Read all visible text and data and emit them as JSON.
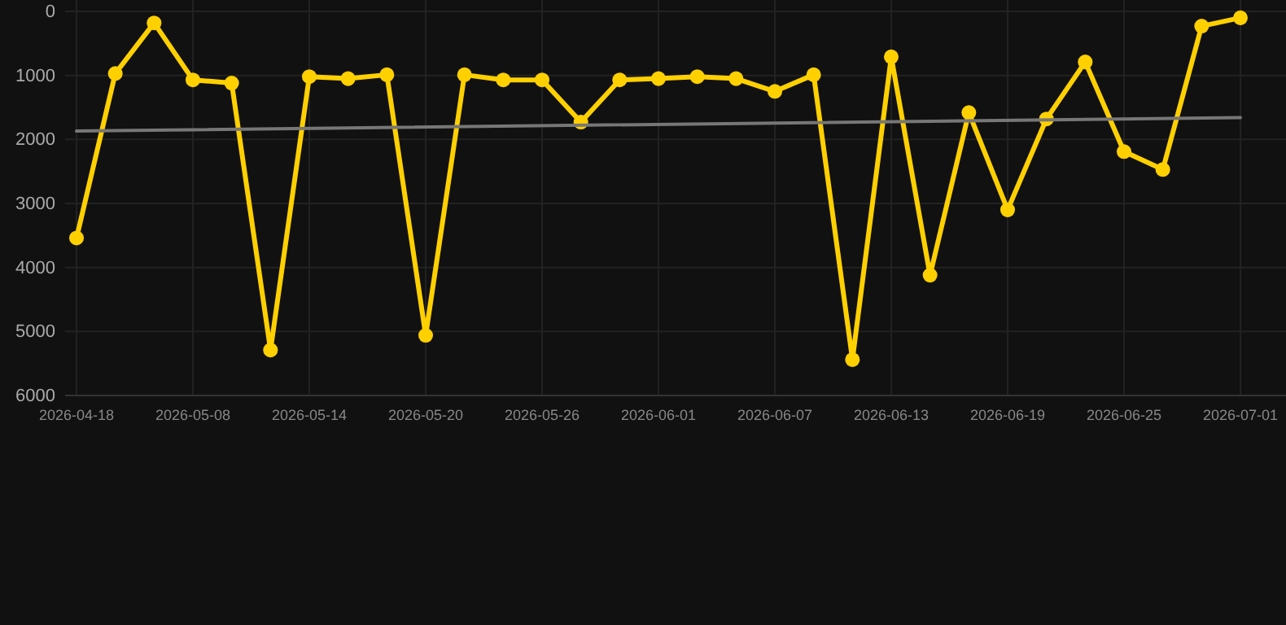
{
  "chart_data": {
    "type": "line",
    "categories": [
      "2026-04-18",
      null,
      null,
      "2026-05-08",
      null,
      null,
      "2026-05-14",
      null,
      null,
      "2026-05-20",
      null,
      null,
      "2026-05-26",
      null,
      null,
      "2026-06-01",
      null,
      null,
      "2026-06-07",
      null,
      null,
      "2026-06-13",
      null,
      null,
      "2026-06-19",
      null,
      null,
      "2026-06-25",
      null,
      null,
      "2026-07-01"
    ],
    "series": [
      {
        "color": "#ffd000",
        "marker": "circle",
        "values": [
          3540,
          970,
          180,
          1070,
          1120,
          5290,
          1020,
          1050,
          990,
          5060,
          990,
          1070,
          1070,
          1730,
          1070,
          1050,
          1020,
          1050,
          1250,
          990,
          5440,
          710,
          4120,
          1580,
          3100,
          1680,
          790,
          2190,
          2470,
          230,
          100
        ]
      },
      {
        "type": "line",
        "color": "#777777",
        "marker": "none",
        "values": [
          1870,
          null,
          null,
          null,
          null,
          null,
          null,
          null,
          null,
          null,
          null,
          null,
          null,
          null,
          null,
          null,
          null,
          null,
          null,
          null,
          null,
          null,
          null,
          null,
          null,
          null,
          null,
          null,
          null,
          null,
          1660
        ]
      }
    ],
    "ylim": [
      6000,
      0
    ],
    "yticks": [
      0,
      1000,
      2000,
      3000,
      4000,
      5000,
      6000
    ],
    "grid": true
  }
}
